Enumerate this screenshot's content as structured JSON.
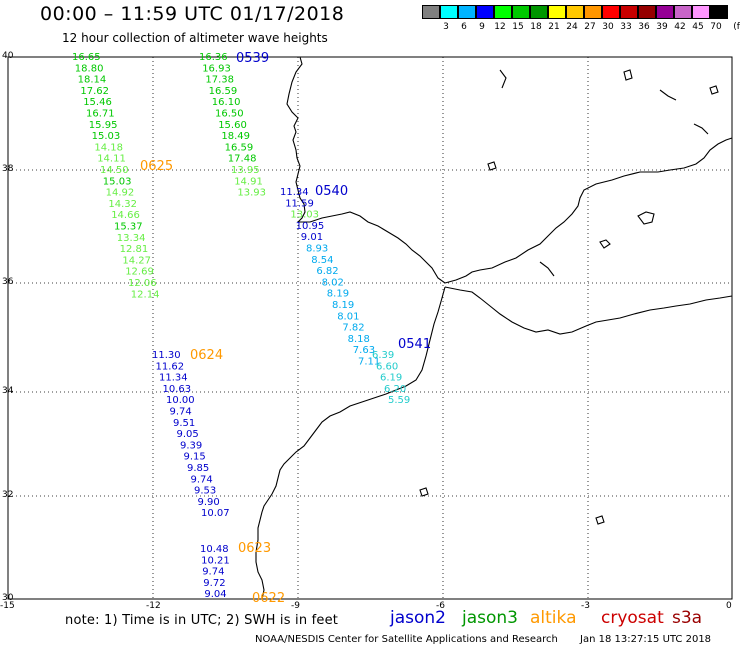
{
  "header": {
    "title": "00:00 – 11:59 UTC 01/17/2018",
    "subtitle": "12 hour collection of altimeter wave heights"
  },
  "colorbar": {
    "colors": [
      "#808080",
      "#00ffff",
      "#00b4ff",
      "#0000ff",
      "#00ff00",
      "#00c800",
      "#009600",
      "#ffff00",
      "#ffc800",
      "#ff9600",
      "#ff0000",
      "#c80000",
      "#960000",
      "#960096",
      "#c864c8",
      "#ff96ff",
      "#000000"
    ],
    "labels": [
      "3",
      "6",
      "9",
      "12",
      "15",
      "18",
      "21",
      "24",
      "27",
      "30",
      "33",
      "36",
      "39",
      "42",
      "45",
      "70"
    ],
    "unit": "(ft)"
  },
  "axes": {
    "lon_ticks": [
      "-15",
      "-12",
      "-9",
      "-6",
      "-3",
      "0"
    ],
    "lat_ticks": [
      "40",
      "38",
      "36",
      "34",
      "32",
      "30"
    ]
  },
  "tracks": [
    {
      "label": "0625",
      "label_color": "#ff9900",
      "points": [
        {
          "v": "16.65",
          "c": "#00c800"
        },
        {
          "v": "18.80",
          "c": "#00c800"
        },
        {
          "v": "18.14",
          "c": "#00c800"
        },
        {
          "v": "17.62",
          "c": "#00c800"
        },
        {
          "v": "15.46",
          "c": "#00c800"
        },
        {
          "v": "16.71",
          "c": "#00c800"
        },
        {
          "v": "15.95",
          "c": "#00c800"
        },
        {
          "v": "15.03",
          "c": "#00c800"
        },
        {
          "v": "14.18",
          "c": "#66ee44"
        },
        {
          "v": "14.11",
          "c": "#66ee44"
        },
        {
          "v": "14.50",
          "c": "#66ee44"
        },
        {
          "v": "15.03",
          "c": "#00c800"
        },
        {
          "v": "14.92",
          "c": "#66ee44"
        },
        {
          "v": "14.32",
          "c": "#66ee44"
        },
        {
          "v": "14.66",
          "c": "#66ee44"
        },
        {
          "v": "15.37",
          "c": "#00c800"
        },
        {
          "v": "13.34",
          "c": "#66ee44"
        },
        {
          "v": "12.81",
          "c": "#66ee44"
        },
        {
          "v": "14.27",
          "c": "#66ee44"
        },
        {
          "v": "12.69",
          "c": "#66ee44"
        },
        {
          "v": "12.06",
          "c": "#66ee44"
        },
        {
          "v": "12.14",
          "c": "#66ee44"
        }
      ]
    },
    {
      "label": "0624",
      "label_color": "#ff9900",
      "points": [
        {
          "v": "11.30",
          "c": "#0000cc"
        },
        {
          "v": "11.62",
          "c": "#0000cc"
        },
        {
          "v": "11.34",
          "c": "#0000cc"
        },
        {
          "v": "10.63",
          "c": "#0000cc"
        },
        {
          "v": "10.00",
          "c": "#0000cc"
        },
        {
          "v": "9.74",
          "c": "#0000cc"
        },
        {
          "v": "9.51",
          "c": "#0000cc"
        },
        {
          "v": "9.05",
          "c": "#0000cc"
        },
        {
          "v": "9.39",
          "c": "#0000cc"
        },
        {
          "v": "9.15",
          "c": "#0000cc"
        },
        {
          "v": "9.85",
          "c": "#0000cc"
        },
        {
          "v": "9.74",
          "c": "#0000cc"
        },
        {
          "v": "9.53",
          "c": "#0000cc"
        },
        {
          "v": "9.90",
          "c": "#0000cc"
        },
        {
          "v": "10.07",
          "c": "#0000cc"
        }
      ]
    },
    {
      "label": "0623",
      "label_color": "#ff9900",
      "points": [
        {
          "v": "10.48",
          "c": "#0000cc"
        },
        {
          "v": "10.21",
          "c": "#0000cc"
        },
        {
          "v": "9.74",
          "c": "#0000cc"
        },
        {
          "v": "9.72",
          "c": "#0000cc"
        },
        {
          "v": "9.04",
          "c": "#0000cc"
        }
      ]
    },
    {
      "label": "0622",
      "label_color": "#ff9900",
      "points": []
    },
    {
      "label": "0539",
      "label_color": "#0000cc",
      "points": [
        {
          "v": "16.36",
          "c": "#00c800"
        },
        {
          "v": "16.93",
          "c": "#00c800"
        },
        {
          "v": "17.38",
          "c": "#00c800"
        },
        {
          "v": "16.59",
          "c": "#00c800"
        },
        {
          "v": "16.10",
          "c": "#00c800"
        },
        {
          "v": "16.50",
          "c": "#00c800"
        },
        {
          "v": "15.60",
          "c": "#00c800"
        },
        {
          "v": "18.49",
          "c": "#00c800"
        },
        {
          "v": "16.59",
          "c": "#00c800"
        },
        {
          "v": "17.48",
          "c": "#00c800"
        },
        {
          "v": "13.95",
          "c": "#66ee44"
        },
        {
          "v": "14.91",
          "c": "#66ee44"
        },
        {
          "v": "13.93",
          "c": "#66ee44"
        }
      ]
    },
    {
      "label": "0540",
      "label_color": "#0000cc",
      "points": [
        {
          "v": "11.34",
          "c": "#0000cc"
        },
        {
          "v": "11.59",
          "c": "#0000cc"
        },
        {
          "v": "13.03",
          "c": "#66ee44"
        },
        {
          "v": "10.95",
          "c": "#0000cc"
        },
        {
          "v": "9.01",
          "c": "#0000cc"
        },
        {
          "v": "8.93",
          "c": "#00aaee"
        },
        {
          "v": "8.54",
          "c": "#00aaee"
        },
        {
          "v": "6.82",
          "c": "#00aaee"
        },
        {
          "v": "8.02",
          "c": "#00aaee"
        },
        {
          "v": "8.19",
          "c": "#00aaee"
        },
        {
          "v": "8.19",
          "c": "#00aaee"
        },
        {
          "v": "8.01",
          "c": "#00aaee"
        },
        {
          "v": "7.82",
          "c": "#00aaee"
        },
        {
          "v": "8.18",
          "c": "#00aaee"
        },
        {
          "v": "7.63",
          "c": "#00aaee"
        },
        {
          "v": "7.11",
          "c": "#00aaee"
        }
      ]
    },
    {
      "label": "0541",
      "label_color": "#0000cc",
      "points": [
        {
          "v": "6.39",
          "c": "#22cccc"
        },
        {
          "v": "6.60",
          "c": "#22cccc"
        },
        {
          "v": "6.19",
          "c": "#22cccc"
        },
        {
          "v": "6.20",
          "c": "#22cccc"
        },
        {
          "v": "5.59",
          "c": "#22cccc"
        }
      ]
    }
  ],
  "footer": {
    "note": "note: 1) Time is in UTC; 2) SWH is in feet",
    "legend": [
      {
        "name": "jason2",
        "color": "#0000cc"
      },
      {
        "name": "jason3",
        "color": "#009600"
      },
      {
        "name": "altika",
        "color": "#ff9900"
      },
      {
        "name": "cryosat",
        "color": "#cc0000"
      },
      {
        "name": "s3a",
        "color": "#990000"
      }
    ],
    "credit": "NOAA/NESDIS Center for Satellite Applications and Research",
    "timestamp": "Jan 18 13:27:15 UTC 2018"
  }
}
